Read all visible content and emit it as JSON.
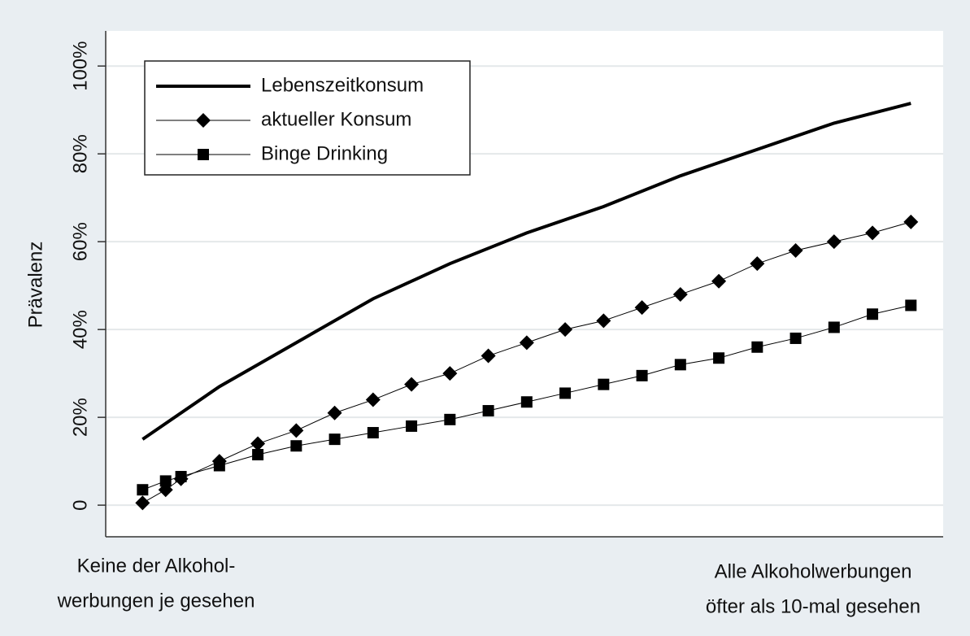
{
  "chart_data": {
    "type": "line",
    "ylabel": "Prävalenz",
    "x_label_left": [
      "Keine der Alkohol-",
      "werbungen je gesehen"
    ],
    "x_label_right": [
      "Alle Alkoholwerbungen",
      "öfter als 10-mal gesehen"
    ],
    "xlim": [
      -4.8,
      104.2
    ],
    "ylim": [
      -7.2,
      108
    ],
    "yticks": [
      0,
      {
        "value": 20,
        "label": "20%"
      },
      {
        "value": 40,
        "label": "40%"
      },
      {
        "value": 60,
        "label": "60%"
      },
      {
        "value": 80,
        "label": "80%"
      },
      {
        "value": 100,
        "label": "100%"
      }
    ],
    "grid": true,
    "legend": "upper left",
    "series": [
      {
        "name": "Lebenszeitkonsum",
        "color": "#000000",
        "marker": "none",
        "x": [
          0,
          10,
          20,
          30,
          40,
          50,
          60,
          70,
          80,
          90,
          100
        ],
        "values": [
          15,
          27,
          37,
          47,
          55,
          62,
          68,
          75,
          81,
          87,
          91.5
        ]
      },
      {
        "name": "aktueller Konsum",
        "color": "#000000",
        "marker": "diamond",
        "x": [
          0,
          3,
          5,
          10,
          15,
          20,
          25,
          30,
          35,
          40,
          45,
          50,
          55,
          60,
          65,
          70,
          75,
          80,
          85,
          90,
          95,
          100
        ],
        "values": [
          0.5,
          3.5,
          6,
          10,
          14,
          17,
          21,
          24,
          27.5,
          30,
          34,
          37,
          40,
          42,
          45,
          48,
          51,
          55,
          58,
          60,
          62,
          64.5
        ]
      },
      {
        "name": "Binge Drinking",
        "color": "#000000",
        "marker": "square",
        "x": [
          0,
          3,
          5,
          10,
          15,
          20,
          25,
          30,
          35,
          40,
          45,
          50,
          55,
          60,
          65,
          70,
          75,
          80,
          85,
          90,
          95,
          100
        ],
        "values": [
          3.5,
          5.5,
          6.5,
          9,
          11.5,
          13.5,
          15,
          16.5,
          18,
          19.5,
          21.5,
          23.5,
          25.5,
          27.5,
          29.5,
          32,
          33.5,
          36,
          38,
          40.5,
          43.5,
          45.5
        ]
      }
    ]
  }
}
